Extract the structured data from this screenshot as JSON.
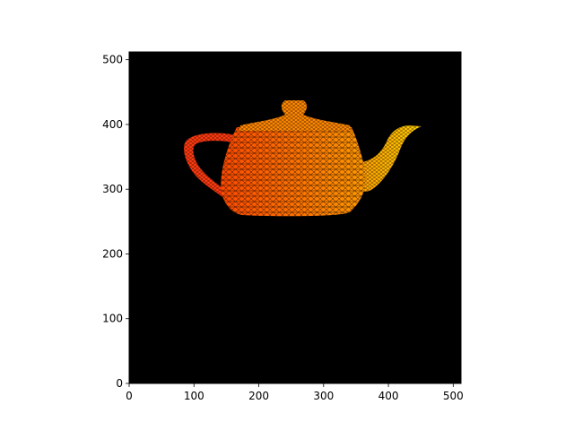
{
  "chart_data": {
    "type": "image",
    "title": "",
    "xlabel": "",
    "ylabel": "",
    "xlim": [
      0,
      512
    ],
    "ylim": [
      0,
      512
    ],
    "x_ticks": [
      0,
      100,
      200,
      300,
      400,
      500
    ],
    "y_ticks": [
      0,
      100,
      200,
      300,
      400,
      500
    ],
    "x_tick_labels": [
      "0",
      "100",
      "200",
      "300",
      "400",
      "500"
    ],
    "y_tick_labels": [
      "0",
      "100",
      "200",
      "300",
      "400",
      "500"
    ],
    "background_color": "#000000",
    "content": "wireframe teapot render",
    "teapot_extent": {
      "x": [
        85,
        455
      ],
      "y": [
        258,
        437
      ]
    },
    "colors": {
      "handle": "#ff3a10",
      "body_left": "#ff5a00",
      "body_right": "#ff8c00",
      "lid": "#ff8800",
      "spout": "#ffc400",
      "wire": "#1a0800"
    }
  }
}
